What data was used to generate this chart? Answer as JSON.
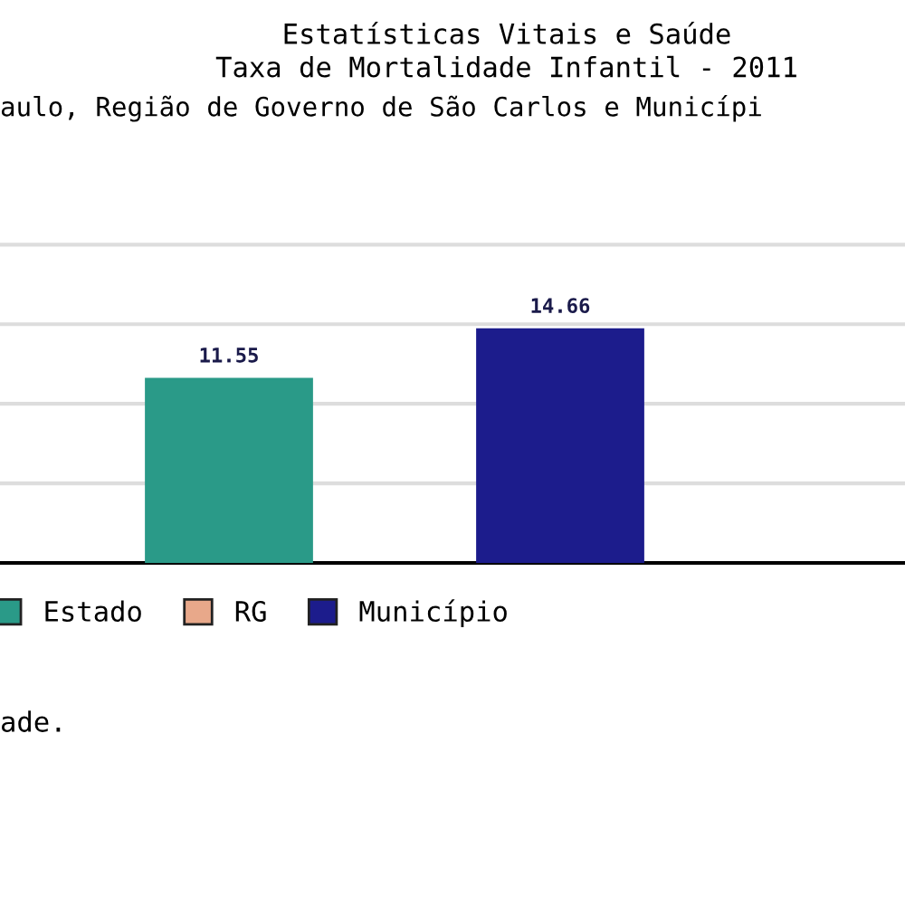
{
  "chart_data": {
    "type": "bar",
    "title": "Estatísticas Vitais e Saúde\nTaxa de Mortalidade Infantil - 2011",
    "subtitle": "aulo, Região de Governo de São Carlos e Municípi",
    "categories": [
      null
    ],
    "series": [
      {
        "name": "Estado",
        "color": "#2a9a88",
        "values": [
          11.55
        ]
      },
      {
        "name": "RG",
        "color": "#e8a88a",
        "values": [
          null
        ]
      },
      {
        "name": "Município",
        "color": "#1c1c8c",
        "values": [
          14.66
        ]
      }
    ],
    "ref_lines": [
      {
        "axis": "y",
        "value": 5,
        "color": "#dddddd"
      },
      {
        "axis": "y",
        "value": 10,
        "color": "#dddddd"
      },
      {
        "axis": "y",
        "value": 15,
        "color": "#dddddd"
      },
      {
        "axis": "y",
        "value": 20,
        "color": "#dddddd"
      }
    ],
    "data_labels": true,
    "legend": "bottom left",
    "annotations": [
      "ade."
    ]
  }
}
